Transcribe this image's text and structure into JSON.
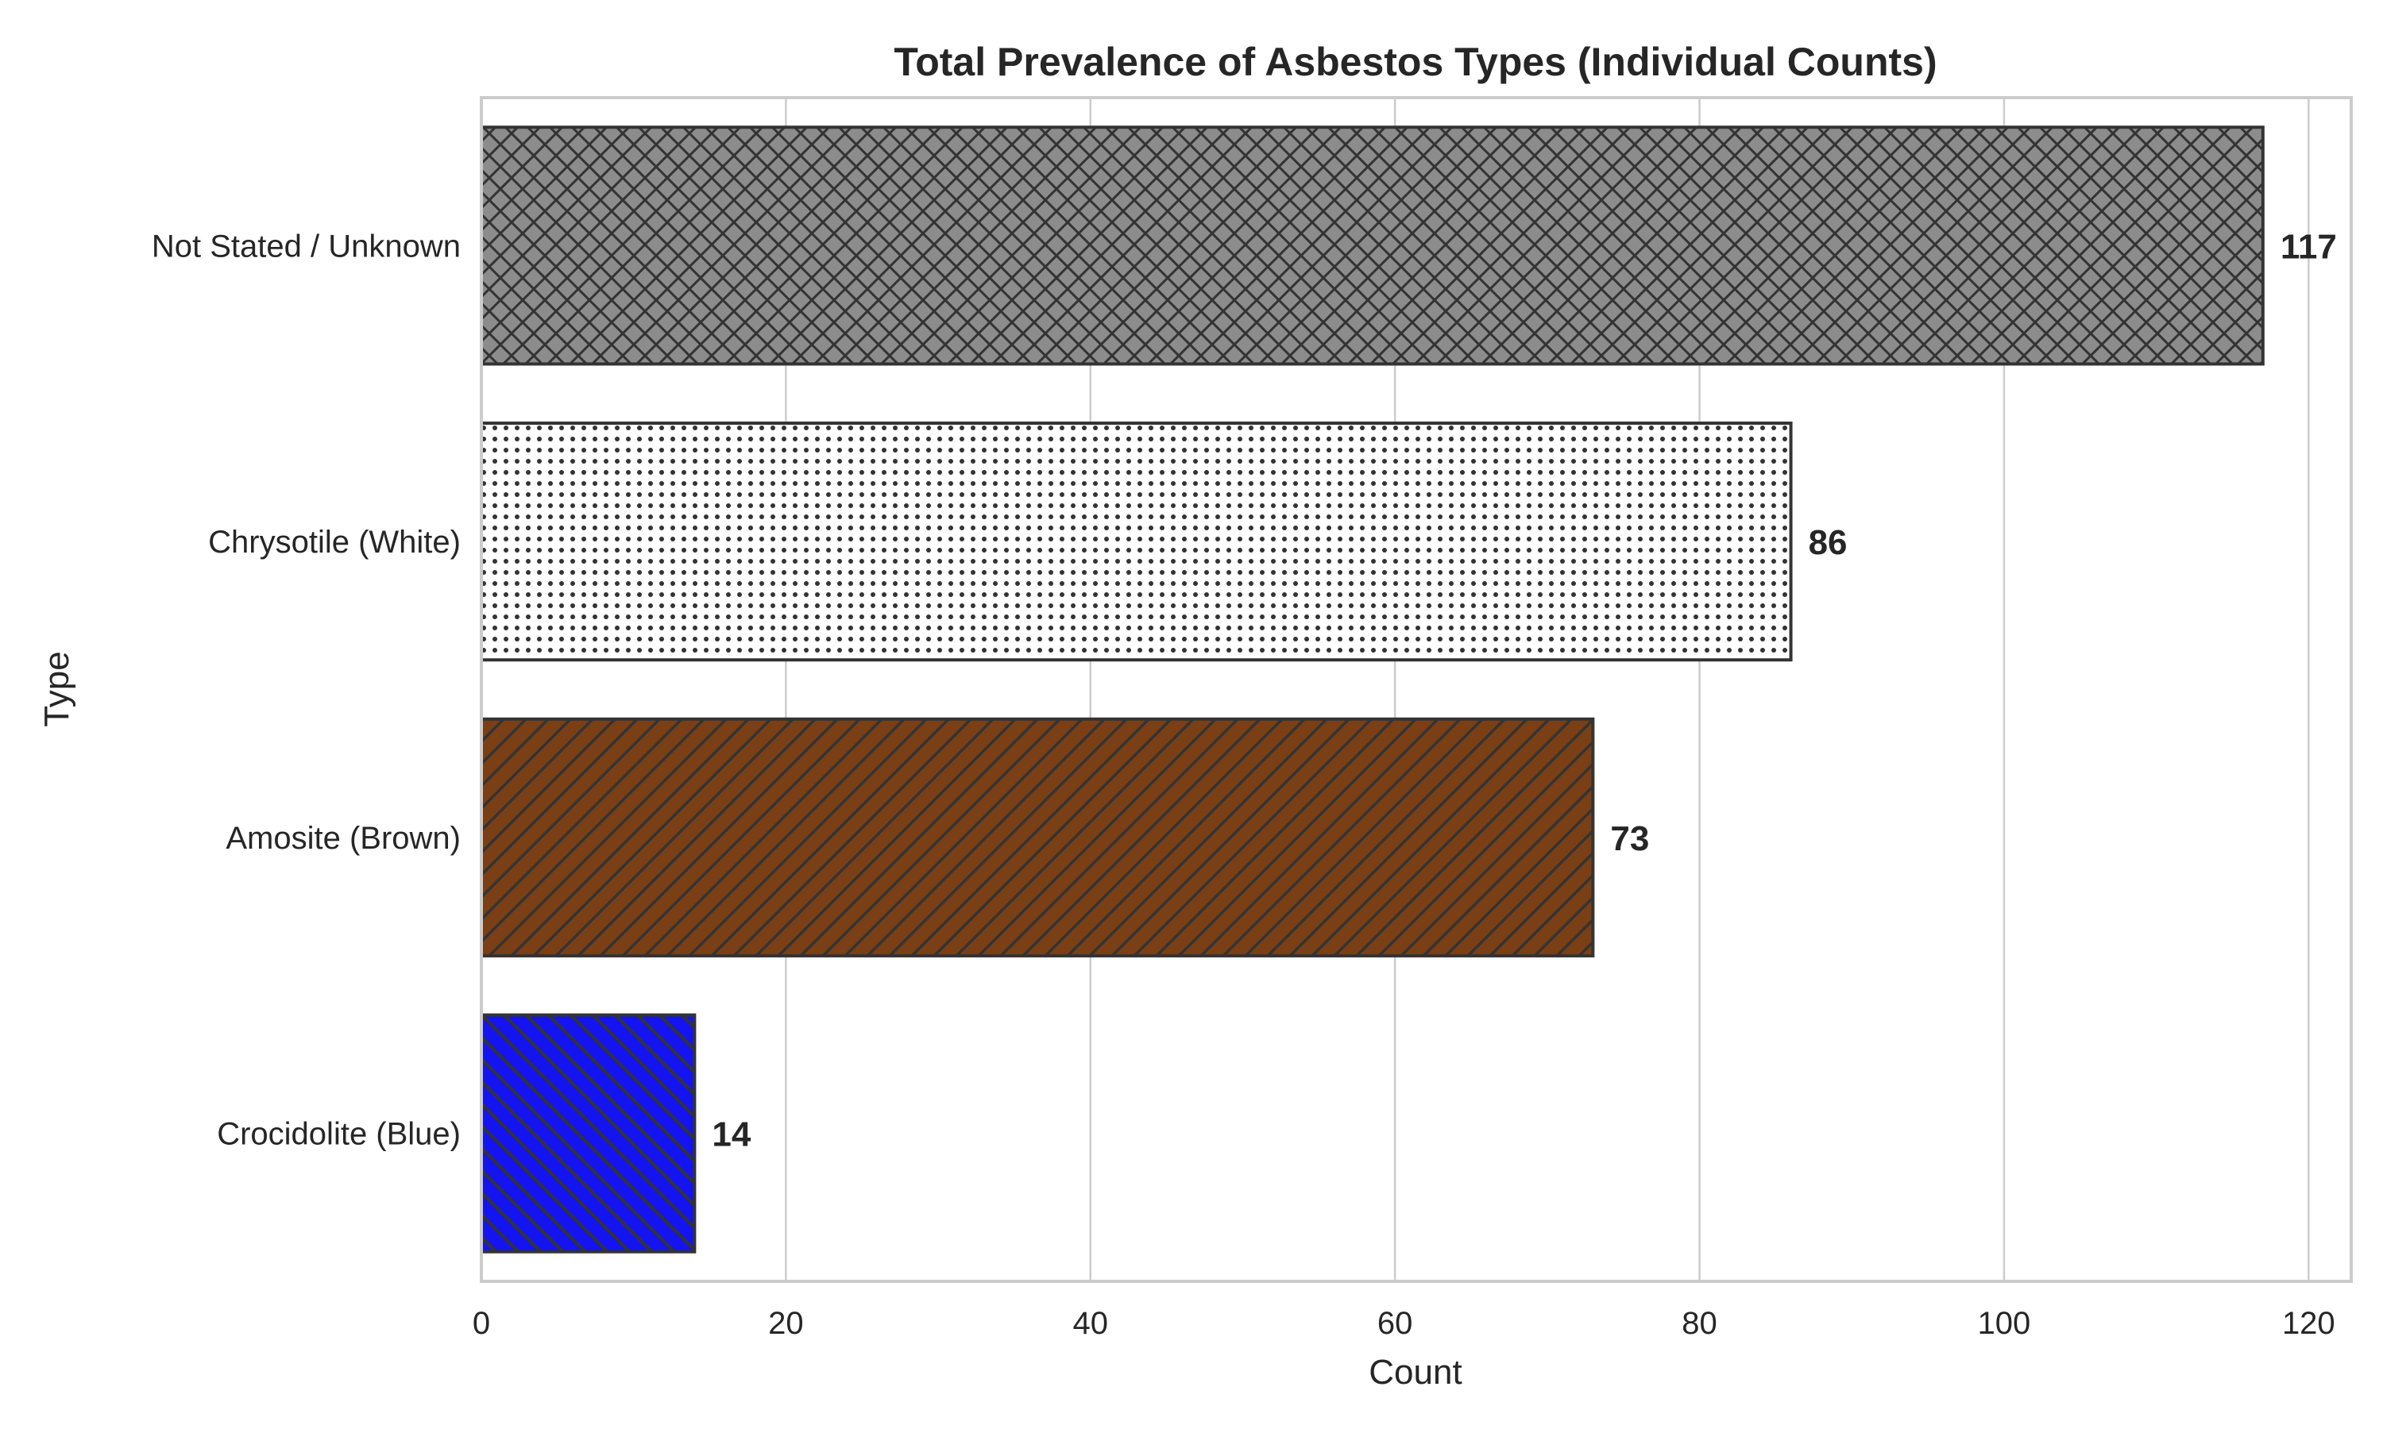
{
  "chart_data": {
    "type": "bar",
    "orientation": "horizontal",
    "title": "Total Prevalence of Asbestos Types (Individual Counts)",
    "xlabel": "Count",
    "ylabel": "Type",
    "categories": [
      "Not Stated / Unknown",
      "Chrysotile (White)",
      "Amosite (Brown)",
      "Crocidolite (Blue)"
    ],
    "values": [
      117,
      86,
      73,
      14
    ],
    "value_labels": [
      "117",
      "86",
      "73",
      "14"
    ],
    "xlim": [
      0,
      122.8
    ],
    "xticks": [
      0,
      20,
      40,
      60,
      80,
      100,
      120
    ],
    "xtick_labels": [
      "0",
      "20",
      "40",
      "60",
      "80",
      "100",
      "120"
    ],
    "grid": "vertical",
    "bar_colors": [
      "#8c8c8c",
      "#ffffff",
      "#7b3f15",
      "#1414f0"
    ],
    "bar_patterns": [
      "crosshatch",
      "dots",
      "diagonal-up",
      "diagonal-down"
    ],
    "edge_color": "#333333",
    "grid_color": "#cccccc",
    "text_color": "#262626"
  }
}
